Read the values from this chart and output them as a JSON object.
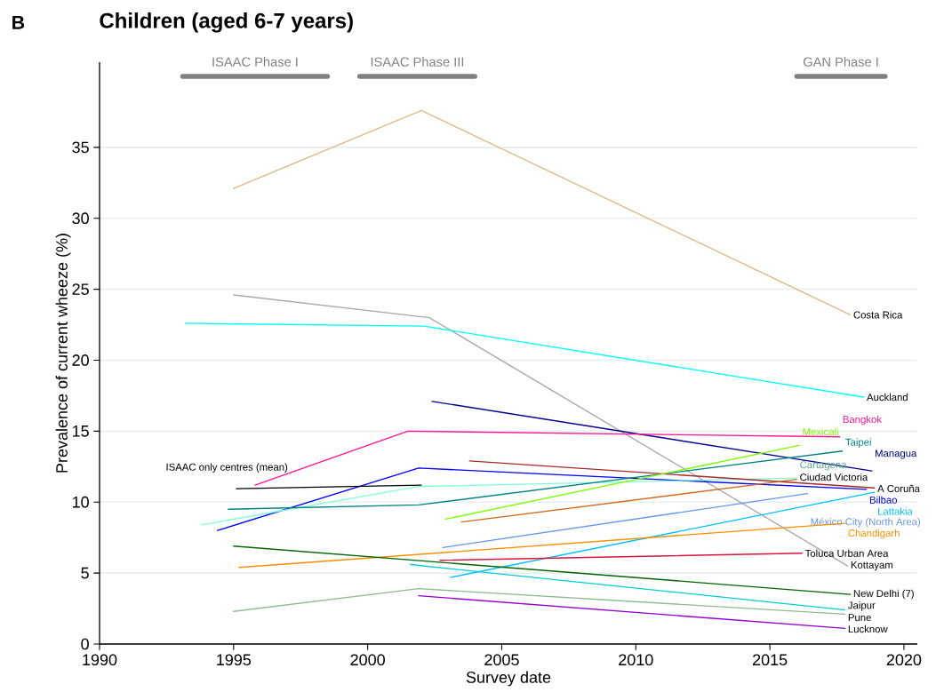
{
  "chart_data": {
    "type": "line",
    "title": "Children (aged 6-7 years)",
    "xlabel": "Survey date",
    "ylabel": "Prevalence of current wheeze (%)",
    "xlim": [
      1990,
      2020.5
    ],
    "ylim": [
      0,
      41
    ],
    "xticks": [
      1990,
      1995,
      2000,
      2005,
      2010,
      2015,
      2020
    ],
    "yticks": [
      0,
      5,
      10,
      15,
      20,
      25,
      30,
      35
    ],
    "grid": "y",
    "annotations": [
      "B",
      {
        "text": "ISAAC only centres (mean)",
        "x": 1995.1,
        "y": 10.95
      }
    ],
    "series": [
      {
        "name": "ISAAC Phase I",
        "color": "#808080",
        "x": [
          1993.1,
          1998.5
        ],
        "values": [
          40,
          40
        ]
      },
      {
        "name": "ISAAC Phase III",
        "color": "#808080",
        "x": [
          1999.7,
          2004.0
        ],
        "values": [
          40,
          40
        ]
      },
      {
        "name": "GAN Phase I",
        "color": "#808080",
        "x": [
          2016.0,
          2019.3
        ],
        "values": [
          40,
          40
        ]
      },
      {
        "name": "Costa Rica",
        "color": "#deb887",
        "x": [
          1995,
          2002,
          2018
        ],
        "values": [
          32.1,
          37.6,
          23.2
        ]
      },
      {
        "name": "Kottayam",
        "color": "#a9a9a9",
        "x": [
          1995,
          2002.3,
          2017.9
        ],
        "values": [
          24.6,
          23.0,
          5.5
        ]
      },
      {
        "name": "Auckland",
        "color": "#00ffff",
        "x": [
          1993.2,
          2002.1,
          2018.5
        ],
        "values": [
          22.6,
          22.4,
          17.4
        ]
      },
      {
        "name": "Managua",
        "color": "#00008b",
        "x": [
          2002.4,
          2018.8
        ],
        "values": [
          17.1,
          12.2
        ]
      },
      {
        "name": "Bangkok",
        "color": "#ff1493",
        "x": [
          1995.8,
          2001.5,
          2017.6
        ],
        "values": [
          11.2,
          15.0,
          14.6
        ]
      },
      {
        "name": "Bilbao",
        "color": "#0000ff",
        "x": [
          1994.4,
          2001.9,
          2018.6
        ],
        "values": [
          8.0,
          12.4,
          10.9
        ]
      },
      {
        "color": "#000000",
        "x": [
          1995.1,
          2002.0
        ],
        "values": [
          10.95,
          11.2
        ]
      },
      {
        "name": "Cartagena",
        "color": "#7fffd4",
        "x": [
          1993.8,
          2001.9,
          2016.0
        ],
        "values": [
          8.4,
          11.1,
          11.7
        ]
      },
      {
        "name": "Taipei",
        "color": "#008080",
        "x": [
          1994.8,
          2001.9,
          2017.7
        ],
        "values": [
          9.5,
          9.8,
          13.6
        ]
      },
      {
        "name": "A Coruña",
        "color": "#a52a2a",
        "x": [
          2003.8,
          2018.9
        ],
        "values": [
          12.9,
          11.0
        ]
      },
      {
        "name": "Ciudad Victoria",
        "color": "#d2691e",
        "x": [
          2003.5,
          2016.0
        ],
        "values": [
          8.6,
          11.6
        ]
      },
      {
        "name": "Mexicali",
        "color": "#7cfc00",
        "x": [
          2002.9,
          2016.1
        ],
        "values": [
          8.8,
          14.0
        ]
      },
      {
        "name": "México City (North Area)",
        "color": "#6495ed",
        "x": [
          2002.8,
          2016.4
        ],
        "values": [
          6.8,
          10.6
        ]
      },
      {
        "name": "Lattakia",
        "color": "#00bfff",
        "x": [
          2003.1,
          2018.9
        ],
        "values": [
          4.7,
          10.7
        ]
      },
      {
        "name": "Chandigarh",
        "color": "#ff8c00",
        "x": [
          1995.2,
          2017.8
        ],
        "values": [
          5.4,
          8.5
        ]
      },
      {
        "name": "Toluca Urban Area",
        "color": "#dc143c",
        "x": [
          2002.7,
          2016.2
        ],
        "values": [
          5.9,
          6.4
        ]
      },
      {
        "name": "New Delhi (7)",
        "color": "#006400",
        "x": [
          1995.0,
          2018.0
        ],
        "values": [
          6.9,
          3.5
        ]
      },
      {
        "name": "Jaipur",
        "color": "#00ced1",
        "x": [
          2001.6,
          2017.8
        ],
        "values": [
          5.6,
          2.4
        ]
      },
      {
        "name": "Pune",
        "color": "#8fbc8f",
        "x": [
          1995.0,
          2001.9,
          2017.8
        ],
        "values": [
          2.3,
          3.9,
          2.1
        ]
      },
      {
        "name": "Lucknow",
        "color": "#9400d3",
        "x": [
          2001.9,
          2017.8
        ],
        "values": [
          3.4,
          1.1
        ]
      }
    ]
  }
}
